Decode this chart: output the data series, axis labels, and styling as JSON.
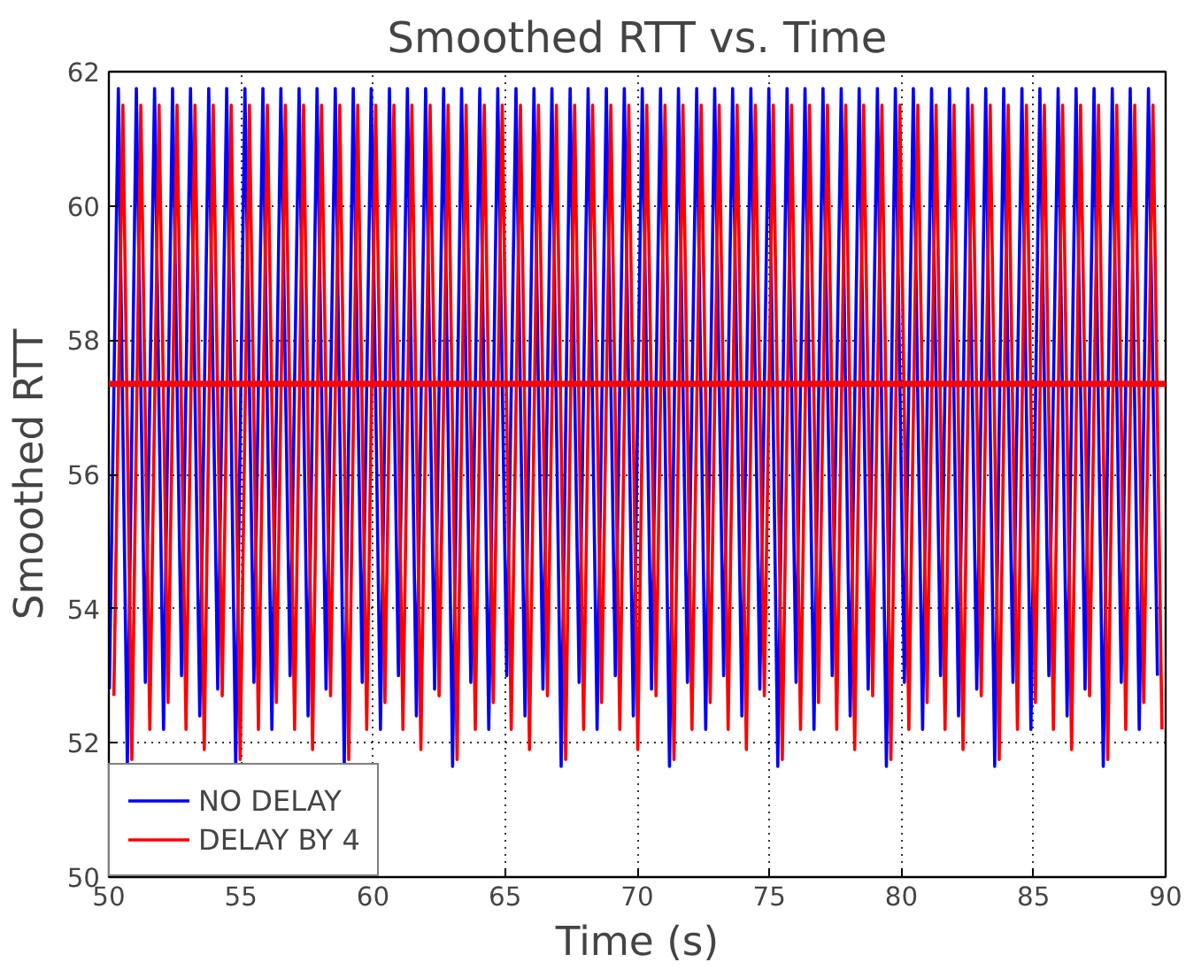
{
  "chart_data": {
    "type": "line",
    "title": "Smoothed RTT vs. Time",
    "xlabel": "Time (s)",
    "ylabel": "Smoothed RTT",
    "xlim": [
      50,
      90
    ],
    "ylim": [
      50,
      62
    ],
    "xticks": [
      50,
      55,
      60,
      65,
      70,
      75,
      80,
      85,
      90
    ],
    "yticks": [
      50,
      52,
      54,
      56,
      58,
      60,
      62
    ],
    "grid": true,
    "legend": "bottom left",
    "line_style": "solid",
    "ref_lines": [
      {
        "axis": "y",
        "value": 57.35,
        "label": null,
        "color": "#ff0000"
      }
    ],
    "series": [
      {
        "name": "NO DELAY",
        "color": "#0000ff",
        "x": [
          50.02,
          50.36,
          50.7,
          51.04,
          51.38,
          51.73,
          52.07,
          52.41,
          52.75,
          53.09,
          53.44,
          53.78,
          54.12,
          54.46,
          54.8,
          55.15,
          55.49,
          55.83,
          56.17,
          56.51,
          56.86,
          57.2,
          57.54,
          57.88,
          58.22,
          58.57,
          58.91,
          59.25,
          59.59,
          59.93,
          60.28,
          60.62,
          60.96,
          61.3,
          61.64,
          61.99,
          62.33,
          62.67,
          63.01,
          63.35,
          63.7,
          64.04,
          64.38,
          64.72,
          65.06,
          65.41,
          65.75,
          66.09,
          66.43,
          66.77,
          67.12,
          67.46,
          67.8,
          68.14,
          68.48,
          68.83,
          69.17,
          69.51,
          69.85,
          70.19,
          70.54,
          70.88,
          71.22,
          71.56,
          71.9,
          72.25,
          72.59,
          72.93,
          73.27,
          73.61,
          73.96,
          74.3,
          74.64,
          74.98,
          75.32,
          75.67,
          76.01,
          76.35,
          76.69,
          77.03,
          77.38,
          77.72,
          78.06,
          78.4,
          78.74,
          79.09,
          79.43,
          79.77,
          80.11,
          80.45,
          80.8,
          81.14,
          81.48,
          81.82,
          82.16,
          82.51,
          82.85,
          83.19,
          83.53,
          83.87,
          84.22,
          84.56,
          84.9,
          85.24,
          85.58,
          85.93,
          86.27,
          86.61,
          86.95,
          87.29,
          87.64,
          87.98,
          88.32,
          88.66,
          89.0,
          89.35,
          89.69
        ],
        "values": [
          52.8,
          61.75,
          51.65,
          61.75,
          52.9,
          61.75,
          52.2,
          61.75,
          53.0,
          61.75,
          52.4,
          61.75,
          52.8,
          61.75,
          51.65,
          61.75,
          52.9,
          61.75,
          52.2,
          61.75,
          53.0,
          61.75,
          52.4,
          61.75,
          52.8,
          61.75,
          51.65,
          61.75,
          52.9,
          61.75,
          52.2,
          61.75,
          53.0,
          61.75,
          52.4,
          61.75,
          52.8,
          61.75,
          51.65,
          61.75,
          52.9,
          61.75,
          52.2,
          61.75,
          53.0,
          61.75,
          52.4,
          61.75,
          52.8,
          61.75,
          51.65,
          61.75,
          52.9,
          61.75,
          52.2,
          61.75,
          53.0,
          61.75,
          52.4,
          61.75,
          52.8,
          61.75,
          51.65,
          61.75,
          52.9,
          61.75,
          52.2,
          61.75,
          53.0,
          61.75,
          52.4,
          61.75,
          52.8,
          61.75,
          51.65,
          61.75,
          52.9,
          61.75,
          52.2,
          61.75,
          53.0,
          61.75,
          52.4,
          61.75,
          52.8,
          61.75,
          51.65,
          61.75,
          52.9,
          61.75,
          52.2,
          61.75,
          53.0,
          61.75,
          52.4,
          61.75,
          52.8,
          61.75,
          51.65,
          61.75,
          52.9,
          61.75,
          52.2,
          61.75,
          53.0,
          61.75,
          52.4,
          61.75,
          52.8,
          61.75,
          51.65,
          61.75,
          52.9,
          61.75,
          52.2,
          61.75,
          53.0
        ]
      },
      {
        "name": "DELAY BY 4",
        "color": "#ff0000",
        "x": [
          50.19,
          50.53,
          50.87,
          51.21,
          51.55,
          51.9,
          52.24,
          52.58,
          52.92,
          53.26,
          53.61,
          53.95,
          54.29,
          54.63,
          54.97,
          55.32,
          55.66,
          56.0,
          56.34,
          56.68,
          57.03,
          57.37,
          57.71,
          58.05,
          58.39,
          58.74,
          59.08,
          59.42,
          59.76,
          60.1,
          60.45,
          60.79,
          61.13,
          61.47,
          61.81,
          62.16,
          62.5,
          62.84,
          63.18,
          63.52,
          63.87,
          64.21,
          64.55,
          64.89,
          65.23,
          65.58,
          65.92,
          66.26,
          66.6,
          66.94,
          67.29,
          67.63,
          67.97,
          68.31,
          68.65,
          69.0,
          69.34,
          69.68,
          70.02,
          70.36,
          70.71,
          71.05,
          71.39,
          71.73,
          72.07,
          72.42,
          72.76,
          73.1,
          73.44,
          73.78,
          74.13,
          74.47,
          74.81,
          75.15,
          75.49,
          75.84,
          76.18,
          76.52,
          76.86,
          77.2,
          77.55,
          77.89,
          78.23,
          78.57,
          78.91,
          79.26,
          79.6,
          79.94,
          80.28,
          80.62,
          80.97,
          81.31,
          81.65,
          81.99,
          82.33,
          82.68,
          83.02,
          83.36,
          83.7,
          84.04,
          84.39,
          84.73,
          85.07,
          85.41,
          85.75,
          86.1,
          86.44,
          86.78,
          87.12,
          87.46,
          87.81,
          88.15,
          88.49,
          88.83,
          89.17,
          89.52,
          89.86
        ],
        "values": [
          52.7,
          61.5,
          51.75,
          61.5,
          52.2,
          61.5,
          52.6,
          61.5,
          52.2,
          61.5,
          51.9,
          61.5,
          52.7,
          61.5,
          51.75,
          61.5,
          52.2,
          61.5,
          52.6,
          61.5,
          52.2,
          61.5,
          51.9,
          61.5,
          52.7,
          61.5,
          51.75,
          61.5,
          52.2,
          61.5,
          52.6,
          61.5,
          52.2,
          61.5,
          51.9,
          61.5,
          52.7,
          61.5,
          51.75,
          61.5,
          52.2,
          61.5,
          52.6,
          61.5,
          52.2,
          61.5,
          51.9,
          61.5,
          52.7,
          61.5,
          51.75,
          61.5,
          52.2,
          61.5,
          52.6,
          61.5,
          52.2,
          61.5,
          51.9,
          61.5,
          52.7,
          61.5,
          51.75,
          61.5,
          52.2,
          61.5,
          52.6,
          61.5,
          52.2,
          61.5,
          51.9,
          61.5,
          52.7,
          61.5,
          51.75,
          61.5,
          52.2,
          61.5,
          52.6,
          61.5,
          52.2,
          61.5,
          51.9,
          61.5,
          52.7,
          61.5,
          51.75,
          61.5,
          52.2,
          61.5,
          52.6,
          61.5,
          52.2,
          61.5,
          51.9,
          61.5,
          52.7,
          61.5,
          51.75,
          61.5,
          52.2,
          61.5,
          52.6,
          61.5,
          52.2,
          61.5,
          51.9,
          61.5,
          52.7,
          61.5,
          51.75,
          61.5,
          52.2,
          61.5,
          52.6,
          61.5,
          52.2
        ]
      }
    ]
  }
}
